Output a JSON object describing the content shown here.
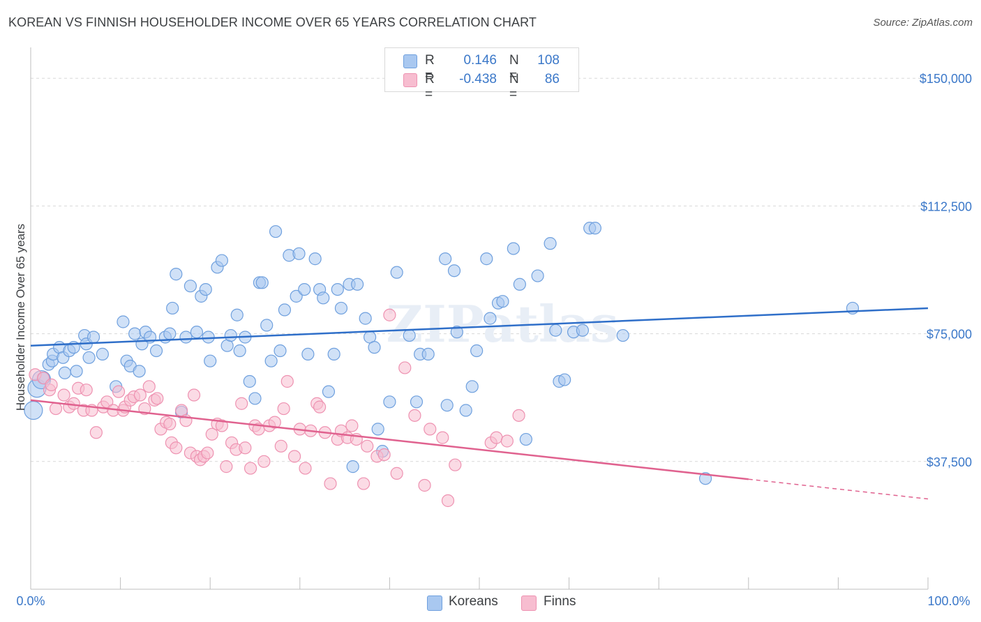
{
  "title": "KOREAN VS FINNISH HOUSEHOLDER INCOME OVER 65 YEARS CORRELATION CHART",
  "source": "Source: ZipAtlas.com",
  "watermark": "ZIPatlas",
  "legend": {
    "koreans": {
      "r_label": "R =",
      "r_value": "0.146",
      "n_label": "N =",
      "n_value": "108"
    },
    "finns": {
      "r_label": "R =",
      "r_value": "-0.438",
      "n_label": "N =",
      "n_value": "86"
    }
  },
  "bottom_legend": {
    "koreans": "Koreans",
    "finns": "Finns"
  },
  "colors": {
    "koreans_fill": "#a9c8f0",
    "koreans_stroke": "#6fa0de",
    "koreans_line": "#2f6fc9",
    "finns_fill": "#f7bdd0",
    "finns_stroke": "#ee92b1",
    "finns_line": "#e0628f",
    "axis_text": "#3b78c9",
    "grid": "#d8d8d8"
  },
  "chart_data": {
    "type": "scatter",
    "title": "KOREAN VS FINNISH HOUSEHOLDER INCOME OVER 65 YEARS CORRELATION CHART",
    "xlabel": "",
    "ylabel": "Householder Income Over 65 years",
    "xlim": [
      0,
      100
    ],
    "ylim": [
      0,
      157000
    ],
    "x_tick_labels": [
      "0.0%",
      "100.0%"
    ],
    "y_ticks": [
      37500,
      75000,
      112500,
      150000
    ],
    "y_tick_labels": [
      "$37,500",
      "$75,000",
      "$112,500",
      "$150,000"
    ],
    "grid": true,
    "legend_placement": "top-center",
    "series": [
      {
        "name": "Koreans",
        "r": 0.146,
        "n": 108,
        "trend": {
          "x": [
            0,
            100
          ],
          "y": [
            71500,
            82500
          ],
          "dashed_from": null
        },
        "points": [
          [
            0.3,
            52500
          ],
          [
            0.7,
            59000
          ],
          [
            1.2,
            61500
          ],
          [
            1.5,
            62000
          ],
          [
            2,
            66000
          ],
          [
            2.4,
            67000
          ],
          [
            2.5,
            69000
          ],
          [
            3.2,
            71000
          ],
          [
            3.6,
            68000
          ],
          [
            3.8,
            63500
          ],
          [
            4.3,
            70000
          ],
          [
            4.8,
            71000
          ],
          [
            5.1,
            64000
          ],
          [
            6,
            74500
          ],
          [
            6.2,
            72000
          ],
          [
            6.5,
            68000
          ],
          [
            7,
            74000
          ],
          [
            8,
            69000
          ],
          [
            9.5,
            59500
          ],
          [
            10.3,
            78500
          ],
          [
            10.7,
            67000
          ],
          [
            11.1,
            65500
          ],
          [
            11.6,
            75000
          ],
          [
            12.1,
            64000
          ],
          [
            12.4,
            72000
          ],
          [
            12.8,
            75500
          ],
          [
            13.3,
            74000
          ],
          [
            14,
            70000
          ],
          [
            15,
            74000
          ],
          [
            15.5,
            75000
          ],
          [
            15.8,
            82500
          ],
          [
            16.2,
            92500
          ],
          [
            16.8,
            52000
          ],
          [
            17.3,
            74000
          ],
          [
            17.8,
            89000
          ],
          [
            18.5,
            75500
          ],
          [
            19,
            86000
          ],
          [
            19.5,
            88000
          ],
          [
            19.8,
            74000
          ],
          [
            20,
            67000
          ],
          [
            20.8,
            94500
          ],
          [
            21.3,
            96500
          ],
          [
            21.9,
            71500
          ],
          [
            22.3,
            74500
          ],
          [
            23,
            80500
          ],
          [
            23.3,
            70000
          ],
          [
            23.9,
            74000
          ],
          [
            24.4,
            61000
          ],
          [
            25,
            56000
          ],
          [
            25.5,
            90000
          ],
          [
            25.8,
            90000
          ],
          [
            26.3,
            77500
          ],
          [
            26.8,
            67000
          ],
          [
            27.3,
            105000
          ],
          [
            27.8,
            70000
          ],
          [
            28.3,
            82000
          ],
          [
            28.8,
            98000
          ],
          [
            29.6,
            86000
          ],
          [
            29.9,
            98500
          ],
          [
            30.5,
            88000
          ],
          [
            30.9,
            69000
          ],
          [
            31.7,
            97000
          ],
          [
            32.2,
            88000
          ],
          [
            32.6,
            85500
          ],
          [
            33.2,
            58000
          ],
          [
            33.8,
            69000
          ],
          [
            34.2,
            88000
          ],
          [
            34.6,
            82500
          ],
          [
            35.5,
            89500
          ],
          [
            35.9,
            36000
          ],
          [
            36.4,
            89500
          ],
          [
            37.3,
            79500
          ],
          [
            37.8,
            74000
          ],
          [
            38.3,
            71000
          ],
          [
            38.7,
            47000
          ],
          [
            39.2,
            40500
          ],
          [
            40,
            55000
          ],
          [
            40.8,
            93000
          ],
          [
            42.2,
            74500
          ],
          [
            43,
            55000
          ],
          [
            43.4,
            69000
          ],
          [
            44.3,
            69000
          ],
          [
            46.2,
            97000
          ],
          [
            46.4,
            54000
          ],
          [
            47.2,
            93500
          ],
          [
            47.5,
            75500
          ],
          [
            48.5,
            52500
          ],
          [
            49.2,
            59500
          ],
          [
            49.7,
            70000
          ],
          [
            50.8,
            97000
          ],
          [
            51.2,
            79500
          ],
          [
            52.1,
            84000
          ],
          [
            52.6,
            84500
          ],
          [
            53.8,
            100000
          ],
          [
            54.5,
            89500
          ],
          [
            55.2,
            44000
          ],
          [
            56.5,
            92000
          ],
          [
            57.9,
            101500
          ],
          [
            58.5,
            76000
          ],
          [
            58.9,
            61000
          ],
          [
            59.5,
            61500
          ],
          [
            60.5,
            75500
          ],
          [
            61.5,
            76000
          ],
          [
            62.3,
            106000
          ],
          [
            62.9,
            106000
          ],
          [
            66,
            74500
          ],
          [
            75.2,
            32500
          ],
          [
            91.6,
            82500
          ]
        ]
      },
      {
        "name": "Finns",
        "r": -0.438,
        "n": 86,
        "trend": {
          "x": [
            0,
            100
          ],
          "y": [
            55500,
            26500
          ],
          "dashed_from": 80
        },
        "points": [
          [
            0.5,
            63000
          ],
          [
            1.4,
            62000
          ],
          [
            2.1,
            58500
          ],
          [
            2.3,
            60000
          ],
          [
            2.8,
            53000
          ],
          [
            3.7,
            57000
          ],
          [
            4.3,
            53500
          ],
          [
            4.8,
            54500
          ],
          [
            5.3,
            59000
          ],
          [
            5.9,
            52500
          ],
          [
            6.2,
            58500
          ],
          [
            6.8,
            52500
          ],
          [
            7.3,
            46000
          ],
          [
            8.1,
            53500
          ],
          [
            8.5,
            55000
          ],
          [
            9.2,
            52500
          ],
          [
            9.8,
            58000
          ],
          [
            10.3,
            52500
          ],
          [
            10.5,
            53500
          ],
          [
            11.1,
            55500
          ],
          [
            11.5,
            56500
          ],
          [
            12.2,
            57000
          ],
          [
            12.7,
            53000
          ],
          [
            13.2,
            59500
          ],
          [
            13.8,
            55500
          ],
          [
            14.1,
            56000
          ],
          [
            14.5,
            47000
          ],
          [
            15.1,
            49000
          ],
          [
            15.5,
            48500
          ],
          [
            15.7,
            43000
          ],
          [
            16.2,
            41500
          ],
          [
            16.8,
            52500
          ],
          [
            17.3,
            49500
          ],
          [
            17.8,
            40000
          ],
          [
            18.2,
            57000
          ],
          [
            18.5,
            39000
          ],
          [
            18.9,
            38000
          ],
          [
            19.3,
            39000
          ],
          [
            19.7,
            40000
          ],
          [
            20.2,
            45500
          ],
          [
            20.8,
            48500
          ],
          [
            21.3,
            48000
          ],
          [
            21.8,
            36000
          ],
          [
            22.4,
            43000
          ],
          [
            22.9,
            41000
          ],
          [
            23.5,
            54500
          ],
          [
            23.9,
            41500
          ],
          [
            24.5,
            35500
          ],
          [
            25,
            48000
          ],
          [
            25.4,
            47000
          ],
          [
            26,
            37500
          ],
          [
            26.6,
            48000
          ],
          [
            27.2,
            49000
          ],
          [
            27.9,
            42000
          ],
          [
            28.2,
            53000
          ],
          [
            28.6,
            61000
          ],
          [
            29.4,
            39000
          ],
          [
            30,
            47000
          ],
          [
            30.6,
            35500
          ],
          [
            31.2,
            46500
          ],
          [
            31.9,
            54500
          ],
          [
            32.2,
            53500
          ],
          [
            32.8,
            46000
          ],
          [
            33.4,
            31000
          ],
          [
            34.2,
            44000
          ],
          [
            34.6,
            46500
          ],
          [
            35.3,
            44500
          ],
          [
            35.8,
            48000
          ],
          [
            36.3,
            44000
          ],
          [
            37.1,
            31000
          ],
          [
            37.5,
            42000
          ],
          [
            38.6,
            39000
          ],
          [
            39.4,
            39500
          ],
          [
            40,
            80500
          ],
          [
            40.8,
            34000
          ],
          [
            41.7,
            65000
          ],
          [
            42.8,
            51000
          ],
          [
            43.9,
            30500
          ],
          [
            44.5,
            47000
          ],
          [
            45.9,
            44500
          ],
          [
            46.5,
            26000
          ],
          [
            47.3,
            36500
          ],
          [
            51.3,
            43000
          ],
          [
            51.9,
            44500
          ],
          [
            53.1,
            43500
          ],
          [
            54.4,
            51000
          ]
        ]
      }
    ]
  }
}
